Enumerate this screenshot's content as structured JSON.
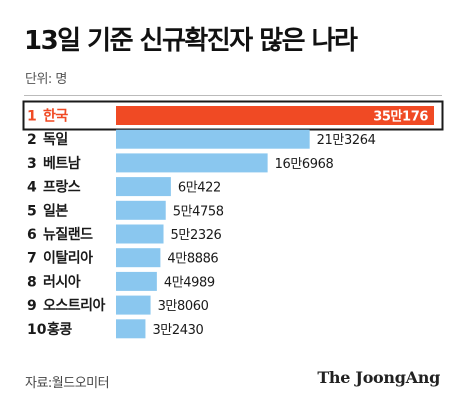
{
  "header": {
    "title": "13일 기준 신규확진자 많은 나라",
    "unit": "단위: 명"
  },
  "footer": {
    "source": "자료:월드오미터",
    "brand": "The JoongAng"
  },
  "colors": {
    "highlight": "#f04a24",
    "bar": "#8ac7ef",
    "highlight_border": "#1a1a1a"
  },
  "chart_data": {
    "type": "bar",
    "orientation": "horizontal",
    "categories": [
      "한국",
      "독일",
      "베트남",
      "프랑스",
      "일본",
      "뉴질랜드",
      "이탈리아",
      "러시아",
      "오스트리아",
      "홍콩"
    ],
    "ranks": [
      "1",
      "2",
      "3",
      "4",
      "5",
      "6",
      "7",
      "8",
      "9",
      "10"
    ],
    "values": [
      350176,
      213264,
      166968,
      60422,
      54758,
      52326,
      48886,
      44989,
      38060,
      32430
    ],
    "value_labels": [
      "35만176",
      "21만3264",
      "16만6968",
      "6만422",
      "5만4758",
      "5만2326",
      "4만8886",
      "4만4989",
      "3만8060",
      "3만2430"
    ],
    "highlight_index": 0,
    "xlim": [
      0,
      350176
    ]
  }
}
